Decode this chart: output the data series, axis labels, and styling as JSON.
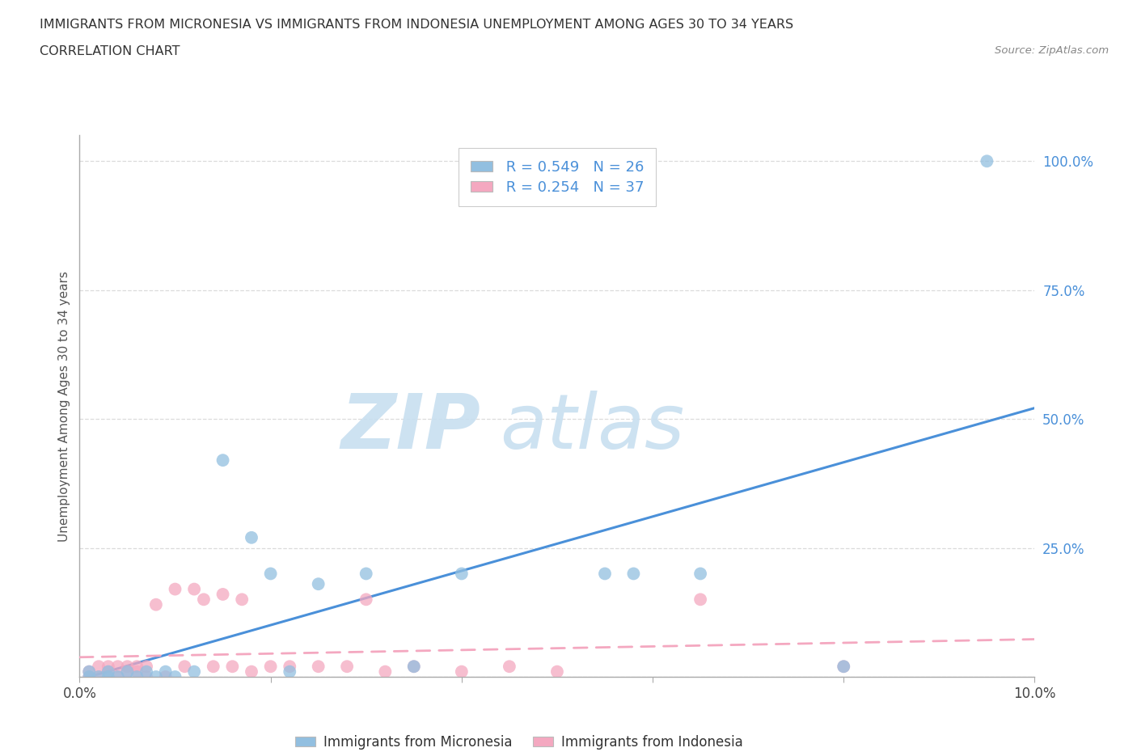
{
  "title_line1": "IMMIGRANTS FROM MICRONESIA VS IMMIGRANTS FROM INDONESIA UNEMPLOYMENT AMONG AGES 30 TO 34 YEARS",
  "title_line2": "CORRELATION CHART",
  "source_text": "Source: ZipAtlas.com",
  "ylabel_text": "Unemployment Among Ages 30 to 34 years",
  "watermark_zip": "ZIP",
  "watermark_atlas": "atlas",
  "xlim": [
    0.0,
    0.1
  ],
  "ylim": [
    0.0,
    1.05
  ],
  "xticks": [
    0.0,
    0.02,
    0.04,
    0.06,
    0.08,
    0.1
  ],
  "xtick_labels": [
    "0.0%",
    "",
    "",
    "",
    "",
    "10.0%"
  ],
  "ytick_positions": [
    0.0,
    0.25,
    0.5,
    0.75,
    1.0
  ],
  "ytick_labels": [
    "",
    "25.0%",
    "50.0%",
    "75.0%",
    "100.0%"
  ],
  "micronesia_color": "#92bfe0",
  "indonesia_color": "#f4a8c0",
  "micronesia_line_color": "#4a90d9",
  "indonesia_line_color": "#f4a8c0",
  "legend_micronesia": "Immigrants from Micronesia",
  "legend_indonesia": "Immigrants from Indonesia",
  "R_micronesia": 0.549,
  "N_micronesia": 26,
  "R_indonesia": 0.254,
  "N_indonesia": 37,
  "micronesia_x": [
    0.001,
    0.001,
    0.002,
    0.003,
    0.003,
    0.004,
    0.005,
    0.006,
    0.007,
    0.008,
    0.009,
    0.01,
    0.012,
    0.015,
    0.018,
    0.02,
    0.022,
    0.025,
    0.03,
    0.035,
    0.04,
    0.055,
    0.058,
    0.065,
    0.08,
    0.095
  ],
  "micronesia_y": [
    0.0,
    0.01,
    0.0,
    0.01,
    0.0,
    0.0,
    0.01,
    0.0,
    0.01,
    0.0,
    0.01,
    0.0,
    0.01,
    0.42,
    0.27,
    0.2,
    0.01,
    0.18,
    0.2,
    0.02,
    0.2,
    0.2,
    0.2,
    0.2,
    0.02,
    1.0
  ],
  "indonesia_x": [
    0.001,
    0.001,
    0.002,
    0.002,
    0.003,
    0.003,
    0.004,
    0.004,
    0.005,
    0.005,
    0.006,
    0.006,
    0.007,
    0.007,
    0.008,
    0.009,
    0.01,
    0.011,
    0.012,
    0.013,
    0.014,
    0.015,
    0.016,
    0.017,
    0.018,
    0.02,
    0.022,
    0.025,
    0.028,
    0.03,
    0.032,
    0.035,
    0.04,
    0.045,
    0.05,
    0.065,
    0.08
  ],
  "indonesia_y": [
    0.0,
    0.01,
    0.0,
    0.02,
    0.01,
    0.02,
    0.0,
    0.02,
    0.01,
    0.02,
    0.01,
    0.02,
    0.0,
    0.02,
    0.14,
    0.0,
    0.17,
    0.02,
    0.17,
    0.15,
    0.02,
    0.16,
    0.02,
    0.15,
    0.01,
    0.02,
    0.02,
    0.02,
    0.02,
    0.15,
    0.01,
    0.02,
    0.01,
    0.02,
    0.01,
    0.15,
    0.02
  ],
  "background_color": "#ffffff",
  "grid_color": "#cccccc",
  "grid_alpha": 0.7,
  "scatter_size": 130,
  "scatter_alpha": 0.75
}
